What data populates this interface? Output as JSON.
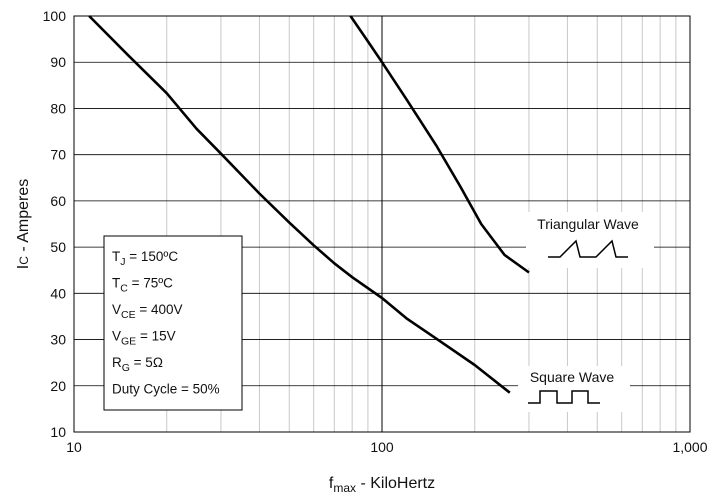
{
  "chart_data": {
    "type": "line",
    "xscale": "log",
    "xlim": [
      10,
      1000
    ],
    "ylim": [
      10,
      100
    ],
    "xticks": [
      10,
      100,
      1000
    ],
    "xtick_labels": [
      "10",
      "100",
      "1,000"
    ],
    "yticks": [
      10,
      20,
      30,
      40,
      50,
      60,
      70,
      80,
      90,
      100
    ],
    "ytick_labels": [
      "10",
      "20",
      "30",
      "40",
      "50",
      "60",
      "70",
      "80",
      "90",
      "100"
    ],
    "xlabel": {
      "main": "f",
      "sub": "max",
      "rest": " - KiloHertz"
    },
    "ylabel": {
      "main": "I",
      "sub": "C",
      "rest": " - Amperes"
    },
    "grid": true,
    "series": [
      {
        "name": "Square Wave",
        "x": [
          11.2,
          15,
          20,
          25,
          30,
          40,
          50,
          60,
          70,
          80,
          100,
          120,
          150,
          200,
          260
        ],
        "y": [
          100,
          91.5,
          83.3,
          75.6,
          70.2,
          61.6,
          55.3,
          50.4,
          46.5,
          43.5,
          39,
          34.6,
          30.2,
          24.5,
          18.5
        ]
      },
      {
        "name": "Triangular Wave",
        "x": [
          79,
          90,
          100,
          120,
          150,
          180,
          210,
          250,
          300
        ],
        "y": [
          100,
          94.5,
          90,
          82,
          72,
          63,
          55,
          48.3,
          44.5
        ]
      }
    ],
    "annotation_lines": [
      {
        "main": "T",
        "sub": "J",
        "rest": " = 150ºC"
      },
      {
        "main": "T",
        "sub": "C",
        "rest": " = 75ºC"
      },
      {
        "main": "V",
        "sub": "CE",
        "rest": " = 400V"
      },
      {
        "main": "V",
        "sub": "GE",
        "rest": " = 15V"
      },
      {
        "main": "R",
        "sub": "G",
        "rest": " = 5Ω"
      },
      {
        "main": "Duty Cycle = 50%",
        "sub": "",
        "rest": ""
      }
    ]
  }
}
